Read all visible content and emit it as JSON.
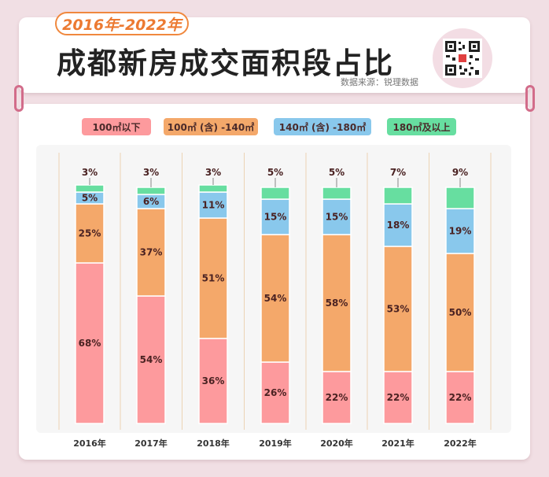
{
  "header": {
    "year_range": "2016年-2022年",
    "title": "成都新房成交面积段占比",
    "source": "数据来源：锐理数据",
    "qr_icon": "qr-code-icon"
  },
  "colors": {
    "s1": "#fd9a9d",
    "s2": "#f4a86a",
    "s3": "#89c8ec",
    "s4": "#67dea0",
    "page_bg": "#f1dfe4",
    "ring": "#d26c8a"
  },
  "chart_data": {
    "type": "bar",
    "stacked": true,
    "title": "成都新房成交面积段占比",
    "categories": [
      "2016年",
      "2017年",
      "2018年",
      "2019年",
      "2020年",
      "2021年",
      "2022年"
    ],
    "series": [
      {
        "name": "100㎡以下",
        "values": [
          68,
          54,
          36,
          26,
          22,
          22,
          22
        ]
      },
      {
        "name": "100㎡ (含) -140㎡",
        "values": [
          25,
          37,
          51,
          54,
          58,
          53,
          50
        ]
      },
      {
        "name": "140㎡ (含) -180㎡",
        "values": [
          5,
          6,
          11,
          15,
          15,
          18,
          19
        ]
      },
      {
        "name": "180㎡及以上",
        "values": [
          3,
          3,
          3,
          5,
          5,
          7,
          9
        ]
      }
    ],
    "value_suffix": "%",
    "ylim": [
      0,
      100
    ],
    "legend_position": "top",
    "xlabel": "",
    "ylabel": ""
  }
}
